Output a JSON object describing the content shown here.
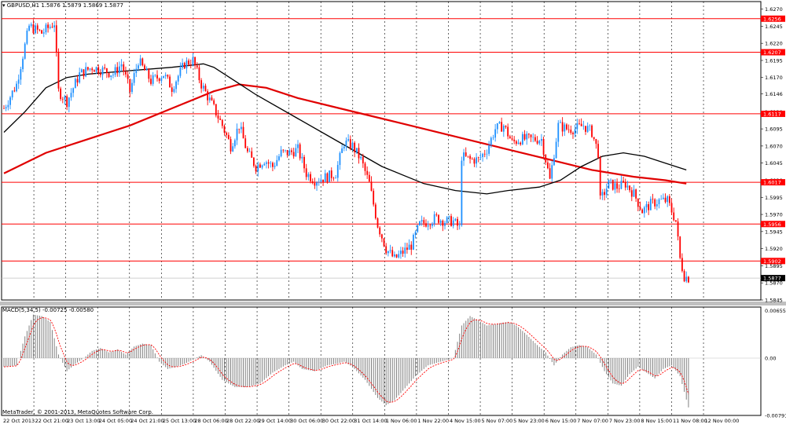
{
  "window": {
    "symbol_title": "GBPUSD,H1",
    "ohlc": "1.5876 1.5879 1.5869 1.5877",
    "macd_label": "MACD(5,34,5)",
    "macd_values": "-0.00725 -0.00580",
    "copyright": "MetaTrader, © 2001-2013, MetaQuotes Software Corp."
  },
  "colors": {
    "background": "#ffffff",
    "bull_candle": "#1e90ff",
    "bear_candle": "#ff0000",
    "ma_fast": "#000000",
    "ma_slow": "#e00000",
    "level_line": "#ff0000",
    "macd_hist": "#808080",
    "macd_signal": "#ff0000",
    "grid": "#000000"
  },
  "chart_data": {
    "type": "candlestick",
    "symbol": "GBPUSD",
    "timeframe": "H1",
    "ylim": [
      1.5845,
      1.6281
    ],
    "y_ticks": [
      "1.6270",
      "1.6245",
      "1.6220",
      "1.6195",
      "1.6170",
      "1.6146",
      "1.6120",
      "1.6095",
      "1.6070",
      "1.6045",
      "1.6020",
      "1.5995",
      "1.5970",
      "1.5945",
      "1.5920",
      "1.5895",
      "1.5870",
      "1.5845"
    ],
    "current_price": "1.5877",
    "horizontal_levels": [
      "1.6256",
      "1.6207",
      "1.6117",
      "1.6017",
      "1.5956",
      "1.5902"
    ],
    "x_tick_labels": [
      "22 Oct 2013",
      "22 Oct 21:00",
      "23 Oct 13:00",
      "24 Oct 05:00",
      "24 Oct 21:00",
      "25 Oct 13:00",
      "28 Oct 06:00",
      "28 Oct 22:00",
      "29 Oct 14:00",
      "30 Oct 06:00",
      "30 Oct 22:00",
      "31 Oct 14:00",
      "1 Nov 06:00",
      "1 Nov 22:00",
      "4 Nov 15:00",
      "5 Nov 07:00",
      "5 Nov 23:00",
      "6 Nov 15:00",
      "7 Nov 07:00",
      "7 Nov 23:00",
      "8 Nov 15:00",
      "11 Nov 08:00",
      "12 Nov 00:00"
    ],
    "close_path": [
      [
        0,
        1.6125
      ],
      [
        6,
        1.616
      ],
      [
        12,
        1.6245
      ],
      [
        18,
        1.6235
      ],
      [
        24,
        1.625
      ],
      [
        26,
        1.615
      ],
      [
        30,
        1.6135
      ],
      [
        36,
        1.6175
      ],
      [
        42,
        1.6185
      ],
      [
        48,
        1.618
      ],
      [
        52,
        1.6175
      ],
      [
        56,
        1.619
      ],
      [
        60,
        1.615
      ],
      [
        64,
        1.6195
      ],
      [
        70,
        1.6165
      ],
      [
        76,
        1.6175
      ],
      [
        80,
        1.6155
      ],
      [
        86,
        1.619
      ],
      [
        90,
        1.6195
      ],
      [
        94,
        1.616
      ],
      [
        100,
        1.6125
      ],
      [
        104,
        1.61
      ],
      [
        108,
        1.607
      ],
      [
        112,
        1.61
      ],
      [
        116,
        1.606
      ],
      [
        120,
        1.604
      ],
      [
        124,
        1.605
      ],
      [
        128,
        1.604
      ],
      [
        132,
        1.606
      ],
      [
        136,
        1.606
      ],
      [
        140,
        1.6065
      ],
      [
        144,
        1.603
      ],
      [
        148,
        1.602
      ],
      [
        154,
        1.6025
      ],
      [
        158,
        1.603
      ],
      [
        162,
        1.6075
      ],
      [
        166,
        1.607
      ],
      [
        170,
        1.605
      ],
      [
        174,
        1.6015
      ],
      [
        178,
        1.5955
      ],
      [
        182,
        1.592
      ],
      [
        186,
        1.5905
      ],
      [
        190,
        1.5915
      ],
      [
        194,
        1.5925
      ],
      [
        198,
        1.5955
      ],
      [
        202,
        1.596
      ],
      [
        206,
        1.5965
      ],
      [
        210,
        1.596
      ],
      [
        214,
        1.596
      ],
      [
        217,
        1.595
      ],
      [
        218,
        1.6055
      ],
      [
        222,
        1.605
      ],
      [
        226,
        1.605
      ],
      [
        230,
        1.6065
      ],
      [
        234,
        1.6095
      ],
      [
        238,
        1.61
      ],
      [
        242,
        1.6075
      ],
      [
        246,
        1.608
      ],
      [
        250,
        1.608
      ],
      [
        256,
        1.608
      ],
      [
        260,
        1.602
      ],
      [
        264,
        1.61
      ],
      [
        268,
        1.6095
      ],
      [
        272,
        1.6095
      ],
      [
        276,
        1.61
      ],
      [
        280,
        1.609
      ],
      [
        283,
        1.606
      ],
      [
        284,
        1.599
      ],
      [
        288,
        1.6015
      ],
      [
        292,
        1.601
      ],
      [
        296,
        1.6015
      ],
      [
        300,
        1.6
      ],
      [
        304,
        1.5975
      ],
      [
        308,
        1.5985
      ],
      [
        312,
        1.599
      ],
      [
        316,
        1.599
      ],
      [
        320,
        1.596
      ],
      [
        322,
        1.5905
      ],
      [
        324,
        1.588
      ],
      [
        326,
        1.5877
      ]
    ],
    "ma_fast_path": [
      [
        0,
        1.609
      ],
      [
        10,
        1.612
      ],
      [
        20,
        1.6155
      ],
      [
        30,
        1.617
      ],
      [
        40,
        1.6175
      ],
      [
        60,
        1.618
      ],
      [
        80,
        1.6185
      ],
      [
        95,
        1.619
      ],
      [
        100,
        1.6185
      ],
      [
        110,
        1.6165
      ],
      [
        120,
        1.6145
      ],
      [
        140,
        1.611
      ],
      [
        160,
        1.6075
      ],
      [
        180,
        1.604
      ],
      [
        200,
        1.6015
      ],
      [
        215,
        1.6005
      ],
      [
        230,
        1.6
      ],
      [
        240,
        1.6005
      ],
      [
        255,
        1.601
      ],
      [
        265,
        1.602
      ],
      [
        275,
        1.604
      ],
      [
        285,
        1.6055
      ],
      [
        295,
        1.606
      ],
      [
        305,
        1.6055
      ],
      [
        315,
        1.6045
      ],
      [
        325,
        1.6035
      ]
    ],
    "ma_slow_path": [
      [
        0,
        1.603
      ],
      [
        20,
        1.606
      ],
      [
        40,
        1.608
      ],
      [
        60,
        1.61
      ],
      [
        80,
        1.6125
      ],
      [
        100,
        1.615
      ],
      [
        112,
        1.616
      ],
      [
        125,
        1.6155
      ],
      [
        140,
        1.614
      ],
      [
        160,
        1.6125
      ],
      [
        180,
        1.611
      ],
      [
        200,
        1.6095
      ],
      [
        220,
        1.608
      ],
      [
        240,
        1.6065
      ],
      [
        260,
        1.605
      ],
      [
        280,
        1.6035
      ],
      [
        300,
        1.6025
      ],
      [
        315,
        1.602
      ],
      [
        325,
        1.6015
      ]
    ],
    "macd": {
      "ylim": [
        -0.00791,
        0.00655
      ],
      "y_ticks": [
        "0.00655",
        "0.00",
        "-0.00791"
      ],
      "hist_path": [
        [
          0,
          -0.0012
        ],
        [
          6,
          -0.001
        ],
        [
          10,
          0.003
        ],
        [
          14,
          0.006
        ],
        [
          18,
          0.0058
        ],
        [
          22,
          0.005
        ],
        [
          26,
          0.0005
        ],
        [
          30,
          -0.0018
        ],
        [
          34,
          -0.0008
        ],
        [
          38,
          0.0
        ],
        [
          42,
          0.001
        ],
        [
          46,
          0.0014
        ],
        [
          50,
          0.0008
        ],
        [
          54,
          0.0012
        ],
        [
          58,
          0.0005
        ],
        [
          62,
          0.0016
        ],
        [
          66,
          0.002
        ],
        [
          70,
          0.0018
        ],
        [
          74,
          -0.0005
        ],
        [
          78,
          -0.0015
        ],
        [
          82,
          -0.0012
        ],
        [
          86,
          -0.0008
        ],
        [
          90,
          -0.0002
        ],
        [
          94,
          0.0004
        ],
        [
          98,
          -0.0005
        ],
        [
          104,
          -0.003
        ],
        [
          110,
          -0.004
        ],
        [
          116,
          -0.004
        ],
        [
          122,
          -0.0035
        ],
        [
          128,
          -0.002
        ],
        [
          134,
          -0.001
        ],
        [
          138,
          -0.0005
        ],
        [
          142,
          -0.0015
        ],
        [
          148,
          -0.0018
        ],
        [
          154,
          -0.001
        ],
        [
          158,
          -0.0008
        ],
        [
          162,
          -0.0005
        ],
        [
          166,
          -0.0012
        ],
        [
          172,
          -0.003
        ],
        [
          178,
          -0.0055
        ],
        [
          182,
          -0.0065
        ],
        [
          186,
          -0.0058
        ],
        [
          190,
          -0.0045
        ],
        [
          196,
          -0.0025
        ],
        [
          202,
          -0.001
        ],
        [
          208,
          -0.0005
        ],
        [
          214,
          0.0
        ],
        [
          218,
          0.0045
        ],
        [
          222,
          0.0058
        ],
        [
          226,
          0.0052
        ],
        [
          230,
          0.0045
        ],
        [
          236,
          0.0048
        ],
        [
          240,
          0.005
        ],
        [
          244,
          0.0045
        ],
        [
          248,
          0.0035
        ],
        [
          254,
          0.0018
        ],
        [
          258,
          0.0008
        ],
        [
          262,
          -0.001
        ],
        [
          266,
          0.0005
        ],
        [
          270,
          0.0015
        ],
        [
          274,
          0.0018
        ],
        [
          278,
          0.0015
        ],
        [
          282,
          0.0005
        ],
        [
          286,
          -0.0018
        ],
        [
          290,
          -0.0035
        ],
        [
          294,
          -0.0038
        ],
        [
          298,
          -0.0022
        ],
        [
          302,
          -0.0012
        ],
        [
          306,
          -0.002
        ],
        [
          310,
          -0.0028
        ],
        [
          314,
          -0.0015
        ],
        [
          318,
          -0.001
        ],
        [
          322,
          -0.0025
        ],
        [
          326,
          -0.0068
        ]
      ]
    }
  }
}
